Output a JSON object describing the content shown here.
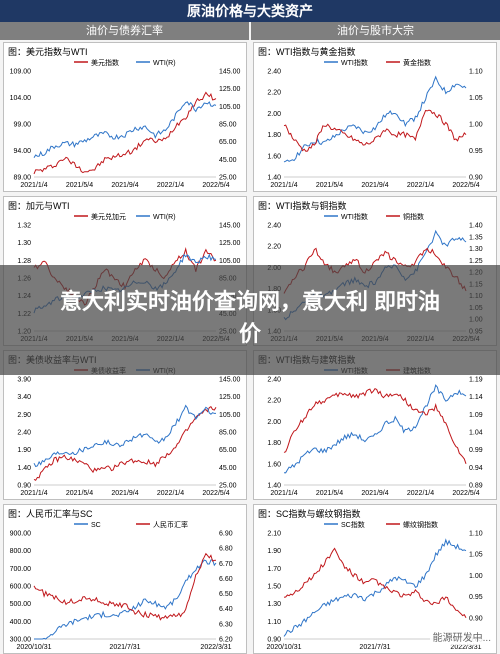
{
  "header": {
    "title": "原油价格与大类资产",
    "left_section": "油价与债券汇率",
    "right_section": "油价与股市大宗"
  },
  "banner": {
    "text": "意大利实时油价查询网，意大利 即时油价"
  },
  "watermark": {
    "text": "能源研发中..."
  },
  "colors": {
    "red": "#c0171b",
    "blue": "#2f75c8",
    "header": "#1f3864",
    "section": "#7f7f7f"
  },
  "panels": [
    {
      "id": "p1",
      "title": "图：美元指数与WTI",
      "chart_data": {
        "type": "line",
        "x_ticks": [
          "2021/1/4",
          "2021/5/4",
          "2021/9/4",
          "2022/1/4",
          "2022/5/4"
        ],
        "left_axis": {
          "ticks": [
            "89.00",
            "94.00",
            "99.00",
            "104.00",
            "109.00"
          ],
          "min": 89,
          "max": 109
        },
        "right_axis": {
          "ticks": [
            "25.00",
            "45.00",
            "65.00",
            "85.00",
            "105.00",
            "125.00",
            "145.00"
          ],
          "min": 25,
          "max": 145
        },
        "series": [
          {
            "name": "美元指数",
            "axis": "left",
            "color": "#c0171b",
            "values": [
              90,
              90.4,
              91.2,
              92.6,
              91.4,
              90.1,
              90.5,
              92.3,
              92.8,
              93.4,
              94.2,
              96.1,
              95.8,
              96.0,
              98.7,
              100.4,
              103.2,
              104.5,
              103.8
            ]
          },
          {
            "name": "WTI(R)",
            "axis": "right",
            "color": "#2f75c8",
            "values": [
              48,
              52,
              60,
              63,
              62,
              66,
              71,
              74,
              70,
              73,
              80,
              82,
              72,
              78,
              94,
              112,
              102,
              110,
              106
            ]
          }
        ]
      }
    },
    {
      "id": "p2",
      "title": "图：WTI指数与黄金指数",
      "chart_data": {
        "type": "line",
        "x_ticks": [
          "2021/1/4",
          "2021/5/4",
          "2021/9/4",
          "2022/1/4",
          "2022/5/4"
        ],
        "left_axis": {
          "ticks": [
            "1.40",
            "1.60",
            "1.80",
            "2.00",
            "2.20",
            "2.40"
          ],
          "min": 1.4,
          "max": 2.4
        },
        "right_axis": {
          "ticks": [
            "0.90",
            "0.95",
            "1.00",
            "1.05",
            "1.10"
          ],
          "min": 0.9,
          "max": 1.1
        },
        "series": [
          {
            "name": "WTI指数",
            "axis": "left",
            "color": "#2f75c8",
            "values": [
              1.52,
              1.58,
              1.68,
              1.74,
              1.72,
              1.78,
              1.85,
              1.88,
              1.82,
              1.86,
              1.98,
              2.02,
              1.9,
              1.96,
              2.14,
              2.32,
              2.2,
              2.28,
              2.24
            ]
          },
          {
            "name": "黄金指数",
            "axis": "right",
            "color": "#c0171b",
            "values": [
              1.0,
              0.97,
              0.95,
              0.96,
              1.0,
              0.99,
              0.98,
              0.97,
              0.96,
              0.97,
              0.99,
              0.98,
              0.98,
              0.97,
              1.03,
              1.02,
              1.0,
              0.97,
              0.98
            ]
          }
        ]
      }
    },
    {
      "id": "p3",
      "title": "图：加元与WTI",
      "chart_data": {
        "type": "line",
        "x_ticks": [
          "2021/1/4",
          "2021/5/4",
          "2021/9/4",
          "2022/1/4",
          "2022/5/4"
        ],
        "left_axis": {
          "ticks": [
            "1.20",
            "1.22",
            "1.24",
            "1.26",
            "1.28",
            "1.30",
            "1.32"
          ],
          "min": 1.2,
          "max": 1.32
        },
        "right_axis": {
          "ticks": [
            "25.00",
            "45.00",
            "65.00",
            "85.00",
            "105.00",
            "125.00",
            "145.00"
          ],
          "min": 25,
          "max": 145
        },
        "series": [
          {
            "name": "美元兑加元",
            "axis": "left",
            "color": "#c0171b",
            "values": [
              1.27,
              1.28,
              1.26,
              1.25,
              1.24,
              1.23,
              1.25,
              1.27,
              1.26,
              1.25,
              1.27,
              1.28,
              1.27,
              1.26,
              1.28,
              1.29,
              1.27,
              1.29,
              1.28
            ]
          },
          {
            "name": "WTI(R)",
            "axis": "right",
            "color": "#2f75c8",
            "values": [
              48,
              52,
              60,
              63,
              62,
              66,
              71,
              74,
              70,
              73,
              80,
              82,
              72,
              78,
              94,
              112,
              102,
              110,
              106
            ]
          }
        ]
      }
    },
    {
      "id": "p4",
      "title": "图：WTI指数与铜指数",
      "chart_data": {
        "type": "line",
        "x_ticks": [
          "2021/1/4",
          "2021/5/4",
          "2021/9/4",
          "2022/1/4",
          "2022/5/4"
        ],
        "left_axis": {
          "ticks": [
            "1.40",
            "1.60",
            "1.80",
            "2.00",
            "2.20",
            "2.40"
          ],
          "min": 1.4,
          "max": 2.4
        },
        "right_axis": {
          "ticks": [
            "0.95",
            "1.00",
            "1.05",
            "1.10",
            "1.15",
            "1.20",
            "1.25",
            "1.30",
            "1.35",
            "1.40"
          ],
          "min": 0.95,
          "max": 1.4
        },
        "series": [
          {
            "name": "WTI指数",
            "axis": "left",
            "color": "#2f75c8",
            "values": [
              1.52,
              1.58,
              1.68,
              1.74,
              1.72,
              1.78,
              1.85,
              1.88,
              1.82,
              1.86,
              1.98,
              2.02,
              1.9,
              1.96,
              2.14,
              2.32,
              2.2,
              2.28,
              2.24
            ]
          },
          {
            "name": "铜指数",
            "axis": "right",
            "color": "#c0171b",
            "values": [
              1.1,
              1.18,
              1.22,
              1.3,
              1.24,
              1.2,
              1.22,
              1.26,
              1.2,
              1.24,
              1.28,
              1.25,
              1.22,
              1.24,
              1.3,
              1.28,
              1.22,
              1.18,
              1.12
            ]
          }
        ]
      }
    },
    {
      "id": "p5",
      "title": "图：美债收益率与WTI",
      "chart_data": {
        "type": "line",
        "x_ticks": [
          "2021/1/4",
          "2021/5/4",
          "2021/9/4",
          "2022/1/4",
          "2022/5/4"
        ],
        "left_axis": {
          "ticks": [
            "0.90",
            "1.40",
            "1.90",
            "2.40",
            "2.90",
            "3.40",
            "3.90"
          ],
          "min": 0.9,
          "max": 3.9
        },
        "right_axis": {
          "ticks": [
            "25.00",
            "45.00",
            "65.00",
            "85.00",
            "105.00",
            "125.00",
            "145.00"
          ],
          "min": 25,
          "max": 145
        },
        "series": [
          {
            "name": "美债收益率",
            "axis": "left",
            "color": "#c0171b",
            "values": [
              1.05,
              1.3,
              1.6,
              1.7,
              1.6,
              1.5,
              1.3,
              1.35,
              1.4,
              1.55,
              1.6,
              1.55,
              1.5,
              1.75,
              1.95,
              2.4,
              2.8,
              3.0,
              3.1
            ]
          },
          {
            "name": "WTI(R)",
            "axis": "right",
            "color": "#2f75c8",
            "values": [
              48,
              52,
              60,
              63,
              62,
              66,
              71,
              74,
              70,
              73,
              80,
              82,
              72,
              78,
              94,
              112,
              102,
              110,
              106
            ]
          }
        ]
      }
    },
    {
      "id": "p6",
      "title": "图：WTI指数与建筑指数",
      "chart_data": {
        "type": "line",
        "x_ticks": [
          "2021/1/4",
          "2021/5/4",
          "2021/9/4",
          "2022/1/4",
          "2022/5/4"
        ],
        "left_axis": {
          "ticks": [
            "1.40",
            "1.60",
            "1.80",
            "2.00",
            "2.20",
            "2.40"
          ],
          "min": 1.4,
          "max": 2.4
        },
        "right_axis": {
          "ticks": [
            "0.89",
            "0.94",
            "0.99",
            "1.04",
            "1.09",
            "1.14",
            "1.19"
          ],
          "min": 0.89,
          "max": 1.19
        },
        "series": [
          {
            "name": "WTI指数",
            "axis": "left",
            "color": "#2f75c8",
            "values": [
              1.52,
              1.58,
              1.68,
              1.74,
              1.72,
              1.78,
              1.85,
              1.88,
              1.82,
              1.86,
              1.98,
              2.02,
              1.9,
              1.96,
              2.14,
              2.32,
              2.2,
              2.28,
              2.24
            ]
          },
          {
            "name": "建筑指数",
            "axis": "right",
            "color": "#c0171b",
            "values": [
              0.98,
              1.04,
              1.08,
              1.12,
              1.13,
              1.14,
              1.15,
              1.14,
              1.15,
              1.16,
              1.14,
              1.15,
              1.13,
              1.1,
              1.09,
              1.11,
              1.06,
              1.0,
              0.95
            ]
          }
        ]
      }
    },
    {
      "id": "p7",
      "title": "图：人民币汇率与SC",
      "chart_data": {
        "type": "line",
        "x_ticks": [
          "2020/10/31",
          "2021/7/31",
          "2022/3/31"
        ],
        "left_axis": {
          "ticks": [
            "300.00",
            "400.00",
            "500.00",
            "600.00",
            "700.00",
            "800.00",
            "900.00"
          ],
          "min": 300,
          "max": 900
        },
        "right_axis": {
          "ticks": [
            "6.20",
            "6.30",
            "6.40",
            "6.50",
            "6.60",
            "6.70",
            "6.80",
            "6.90"
          ],
          "min": 6.2,
          "max": 6.9
        },
        "series": [
          {
            "name": "SC",
            "axis": "left",
            "color": "#2f75c8",
            "values": [
              260,
              300,
              340,
              380,
              400,
              420,
              430,
              440,
              430,
              450,
              480,
              520,
              500,
              480,
              520,
              620,
              700,
              740,
              730
            ]
          },
          {
            "name": "人民币汇率",
            "axis": "right",
            "color": "#c0171b",
            "values": [
              6.55,
              6.5,
              6.48,
              6.44,
              6.45,
              6.47,
              6.46,
              6.44,
              6.42,
              6.43,
              6.38,
              6.36,
              6.35,
              6.34,
              6.35,
              6.38,
              6.62,
              6.75,
              6.72
            ]
          }
        ]
      }
    },
    {
      "id": "p8",
      "title": "图：SC指数与螺纹钢指数",
      "chart_data": {
        "type": "line",
        "x_ticks": [
          "2020/10/31",
          "2021/7/31",
          "2022/3/31"
        ],
        "left_axis": {
          "ticks": [
            "0.90",
            "1.10",
            "1.30",
            "1.50",
            "1.70",
            "1.90",
            "2.10"
          ],
          "min": 0.9,
          "max": 2.1
        },
        "right_axis": {
          "ticks": [
            "0.85",
            "0.90",
            "0.95",
            "1.00",
            "1.05",
            "1.10"
          ],
          "min": 0.85,
          "max": 1.1
        },
        "series": [
          {
            "name": "SC指数",
            "axis": "left",
            "color": "#2f75c8",
            "values": [
              0.95,
              1.02,
              1.1,
              1.2,
              1.28,
              1.34,
              1.38,
              1.4,
              1.36,
              1.42,
              1.5,
              1.6,
              1.55,
              1.5,
              1.62,
              1.85,
              2.0,
              1.95,
              1.9
            ]
          },
          {
            "name": "螺纹钢指数",
            "axis": "right",
            "color": "#c0171b",
            "values": [
              0.95,
              0.96,
              0.98,
              1.0,
              1.03,
              1.06,
              1.02,
              1.0,
              0.98,
              0.99,
              0.97,
              0.96,
              0.95,
              0.96,
              0.94,
              0.93,
              0.95,
              0.92,
              0.9
            ]
          }
        ]
      }
    }
  ]
}
